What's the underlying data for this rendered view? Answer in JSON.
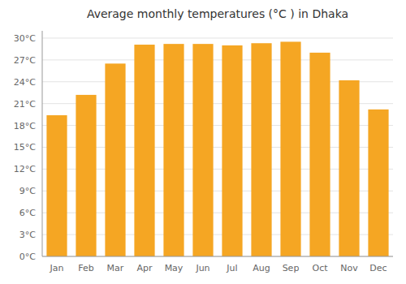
{
  "chart_data": {
    "type": "bar",
    "title": "Average monthly temperatures (°C ) in Dhaka",
    "categories": [
      "Jan",
      "Feb",
      "Mar",
      "Apr",
      "May",
      "Jun",
      "Jul",
      "Aug",
      "Sep",
      "Oct",
      "Nov",
      "Dec"
    ],
    "values": [
      19.4,
      22.2,
      26.5,
      29.1,
      29.2,
      29.2,
      29.0,
      29.3,
      29.5,
      28.0,
      24.2,
      20.2
    ],
    "color": "#F5A623",
    "ylim": [
      0,
      31
    ],
    "yticks": [
      {
        "value": 0,
        "label": "0°C"
      },
      {
        "value": 3,
        "label": "3°C"
      },
      {
        "value": 6,
        "label": "6°C"
      },
      {
        "value": 9,
        "label": "9°C"
      },
      {
        "value": 12,
        "label": "12°C"
      },
      {
        "value": 15,
        "label": "15°C"
      },
      {
        "value": 18,
        "label": "18°C"
      },
      {
        "value": 21,
        "label": "21°C"
      },
      {
        "value": 24,
        "label": "24°C"
      },
      {
        "value": 27,
        "label": "27°C"
      },
      {
        "value": 30,
        "label": "30°C"
      }
    ],
    "grid": true
  }
}
